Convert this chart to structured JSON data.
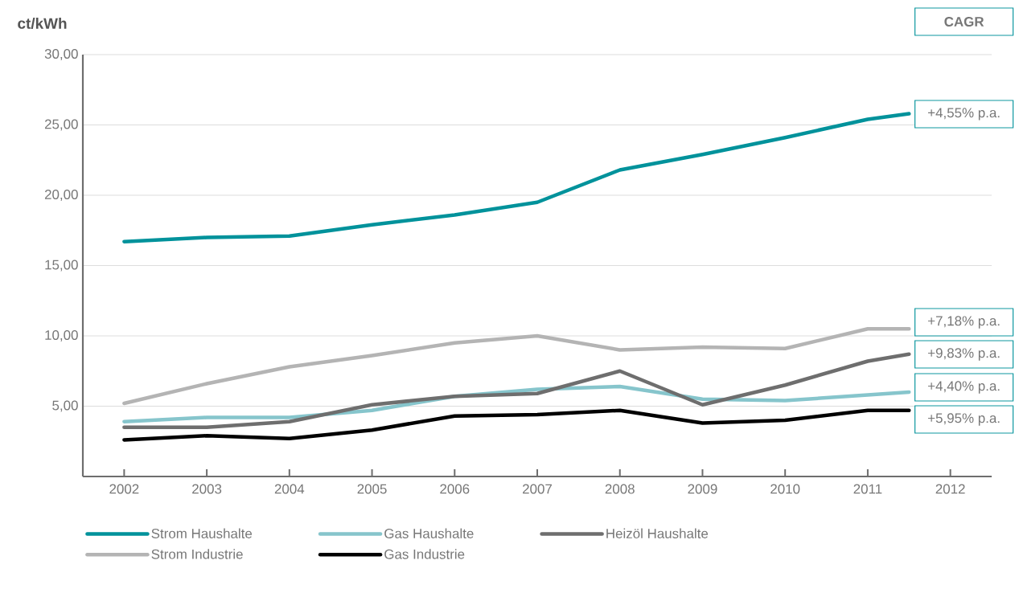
{
  "chart_data": {
    "type": "line",
    "ylabel": "ct/kWh",
    "x": [
      2002,
      2003,
      2004,
      2005,
      2006,
      2007,
      2008,
      2009,
      2010,
      2011,
      2011.5
    ],
    "xlim": [
      2001.5,
      2012.5
    ],
    "xticks": [
      2002,
      2003,
      2004,
      2005,
      2006,
      2007,
      2008,
      2009,
      2010,
      2011,
      2012
    ],
    "ylim": [
      0,
      30
    ],
    "yticks": [
      {
        "value": 5,
        "label": "5,00"
      },
      {
        "value": 10,
        "label": "10,00"
      },
      {
        "value": 15,
        "label": "15,00"
      },
      {
        "value": 20,
        "label": "20,00"
      },
      {
        "value": 25,
        "label": "25,00"
      },
      {
        "value": 30,
        "label": "30,00"
      }
    ],
    "grid": "y",
    "legend": "bottom",
    "series": [
      {
        "name": "Strom Haushalte",
        "color": "#00929b",
        "values": [
          16.7,
          17.0,
          17.1,
          17.9,
          18.6,
          19.5,
          21.8,
          22.9,
          24.1,
          25.4,
          25.8
        ]
      },
      {
        "name": "Gas Haushalte",
        "color": "#86c5cc",
        "values": [
          3.9,
          4.2,
          4.2,
          4.7,
          5.7,
          6.2,
          6.4,
          5.5,
          5.4,
          5.8,
          6.0
        ]
      },
      {
        "name": "Heizöl Haushalte",
        "color": "#6e6e6e",
        "values": [
          3.5,
          3.5,
          3.9,
          5.1,
          5.7,
          5.9,
          7.5,
          5.1,
          6.5,
          8.2,
          8.7
        ]
      },
      {
        "name": "Strom Industrie",
        "color": "#b4b4b4",
        "values": [
          5.2,
          6.6,
          7.8,
          8.6,
          9.5,
          10.0,
          9.0,
          9.2,
          9.1,
          10.5,
          10.5
        ]
      },
      {
        "name": "Gas Industrie",
        "color": "#000000",
        "values": [
          2.6,
          2.9,
          2.7,
          3.3,
          4.3,
          4.4,
          4.7,
          3.8,
          4.0,
          4.7,
          4.7
        ]
      }
    ],
    "annotations": [
      "CAGR",
      "+4,55% p.a.",
      "+7,18% p.a.",
      "+9,83% p.a.",
      "+4,40% p.a.",
      "+5,95% p.a."
    ]
  }
}
